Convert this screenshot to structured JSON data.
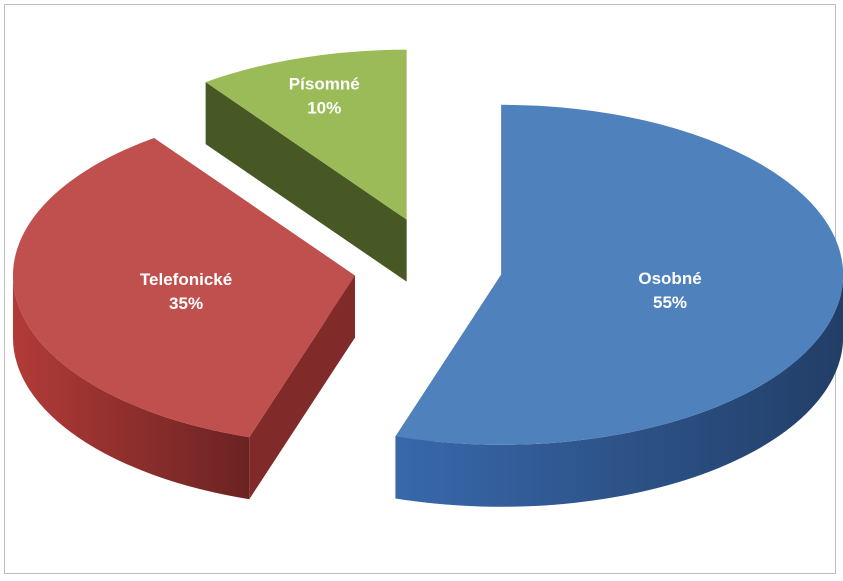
{
  "chart_data": {
    "type": "pie",
    "title": "",
    "style": "3d-exploded",
    "slices": [
      {
        "label": "Osobné",
        "value": 55,
        "display": "55%",
        "color": "#4f81bd",
        "side_color": "#2d5389"
      },
      {
        "label": "Telefonické",
        "value": 35,
        "display": "35%",
        "color": "#c0504d",
        "side_color": "#8e2f2d"
      },
      {
        "label": "Písomné",
        "value": 10,
        "display": "10%",
        "color": "#9bbb59",
        "side_color": "#4f6228"
      }
    ],
    "legend": "none",
    "data_labels": "inside"
  }
}
